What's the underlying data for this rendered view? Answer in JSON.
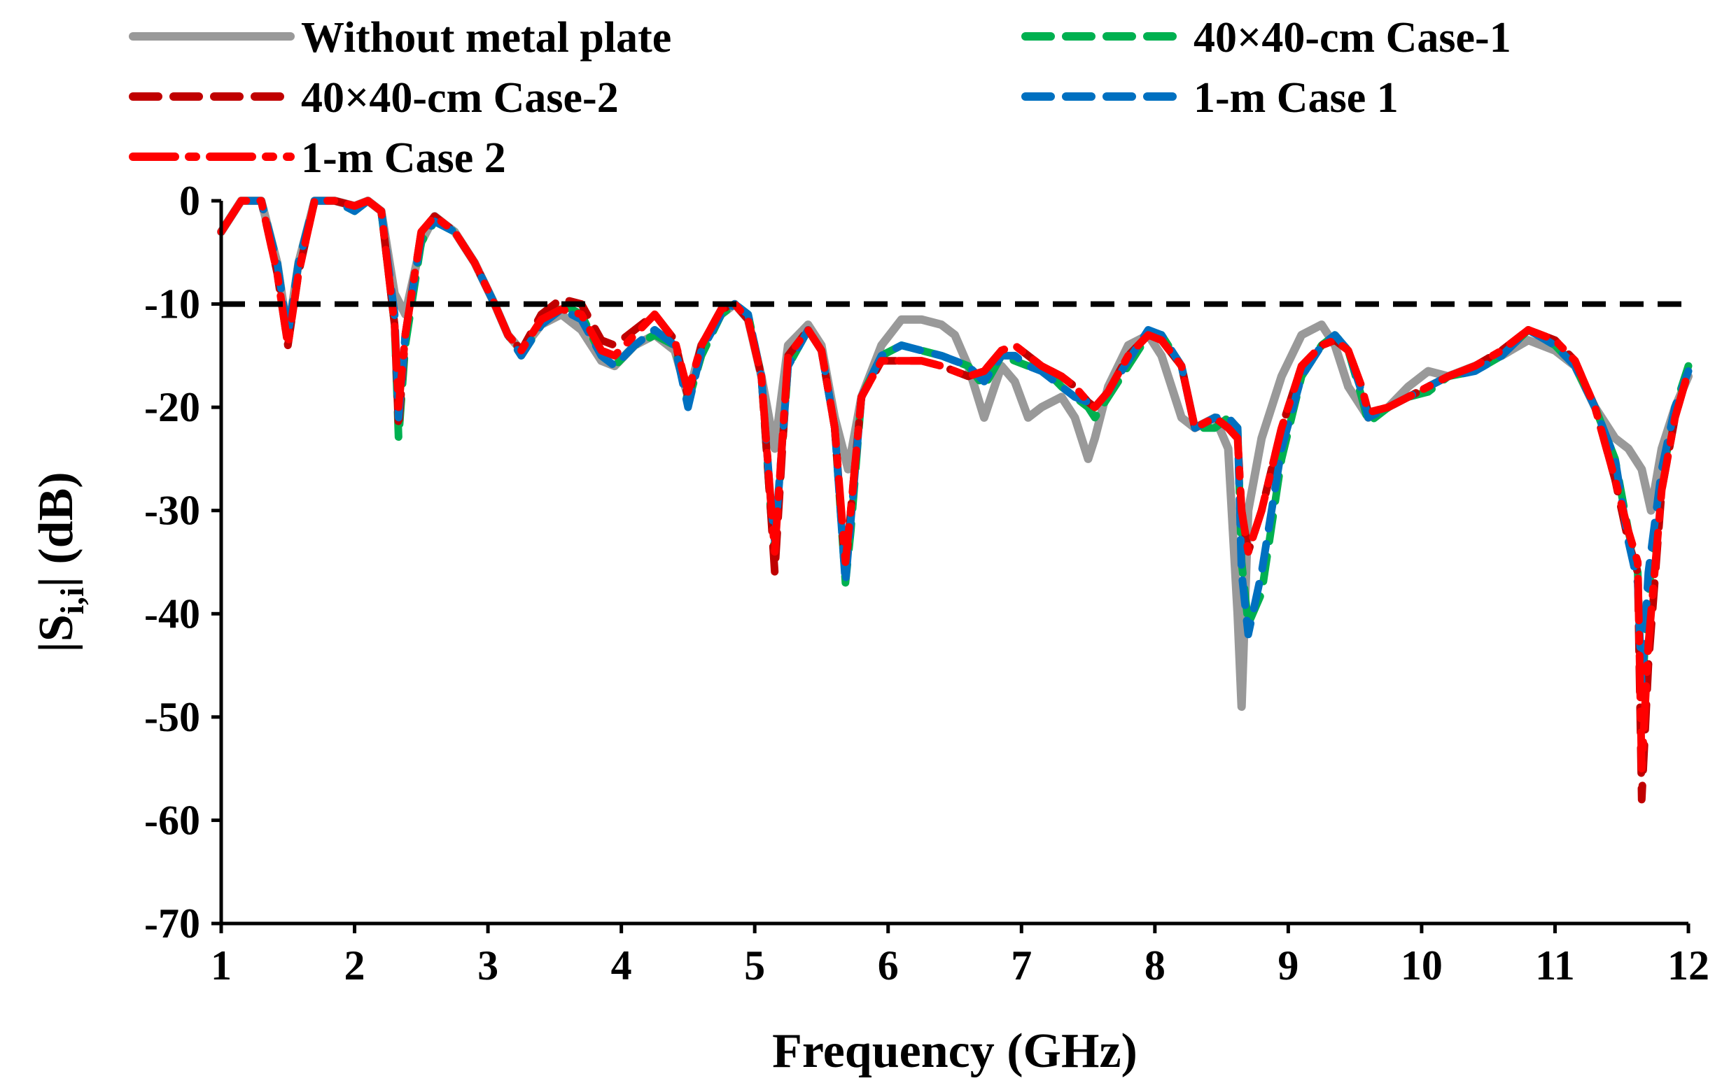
{
  "chart_data": {
    "type": "line",
    "title": "",
    "xlabel": "Frequency (GHz)",
    "ylabel_main": "|S",
    "ylabel_sub": "i,i",
    "ylabel_tail": "| (dB)",
    "xlim": [
      1,
      12
    ],
    "ylim": [
      -70,
      0
    ],
    "xticks": [
      1,
      2,
      3,
      4,
      5,
      6,
      7,
      8,
      9,
      10,
      11,
      12
    ],
    "yticks": [
      0,
      -10,
      -20,
      -30,
      -40,
      -50,
      -60,
      -70
    ],
    "threshold": {
      "y": -10,
      "color": "#000000",
      "style": "dashed"
    },
    "legend_position": "top",
    "series": [
      {
        "name": "Without metal plate",
        "color": "#999999",
        "style": "solid",
        "x": [
          1,
          1.15,
          1.3,
          1.42,
          1.5,
          1.58,
          1.7,
          1.85,
          2,
          2.1,
          2.2,
          2.3,
          2.38,
          2.5,
          2.6,
          2.75,
          2.9,
          3.05,
          3.15,
          3.25,
          3.4,
          3.55,
          3.7,
          3.85,
          3.95,
          4.1,
          4.25,
          4.4,
          4.5,
          4.6,
          4.75,
          4.85,
          4.95,
          5.05,
          5.15,
          5.25,
          5.4,
          5.5,
          5.6,
          5.7,
          5.8,
          5.95,
          6.1,
          6.25,
          6.4,
          6.5,
          6.6,
          6.72,
          6.85,
          6.95,
          7.05,
          7.15,
          7.3,
          7.4,
          7.5,
          7.55,
          7.65,
          7.8,
          7.95,
          8.05,
          8.2,
          8.3,
          8.45,
          8.55,
          8.62,
          8.65,
          8.7,
          8.8,
          8.95,
          9.1,
          9.25,
          9.35,
          9.45,
          9.6,
          9.75,
          9.9,
          10.05,
          10.2,
          10.4,
          10.6,
          10.8,
          11,
          11.15,
          11.3,
          11.45,
          11.55,
          11.65,
          11.72,
          11.8,
          11.9,
          12
        ],
        "y": [
          -3,
          0,
          0,
          -6,
          -13,
          -6,
          0,
          0,
          -0.5,
          0,
          -1,
          -9,
          -11,
          -4,
          -1.5,
          -3,
          -6,
          -10,
          -13,
          -14.5,
          -12,
          -11,
          -12.5,
          -15.5,
          -16,
          -14,
          -13,
          -14.5,
          -19,
          -14,
          -11,
          -10,
          -11.5,
          -17,
          -24,
          -14,
          -12,
          -14,
          -21,
          -26,
          -19,
          -14,
          -11.5,
          -11.5,
          -12,
          -13,
          -16,
          -21,
          -16,
          -17.5,
          -21,
          -20,
          -19,
          -21,
          -25,
          -23,
          -18,
          -14,
          -13,
          -15,
          -21,
          -22,
          -21,
          -24,
          -40,
          -49,
          -30,
          -23,
          -17,
          -13,
          -12,
          -14,
          -18,
          -21,
          -20,
          -18,
          -16.5,
          -17,
          -16,
          -15,
          -13.5,
          -14.5,
          -16,
          -20,
          -23,
          -24,
          -26,
          -30,
          -24,
          -20,
          -17
        ]
      },
      {
        "name": "40×40-cm Case-1",
        "color": "#00B050",
        "style": "dashed",
        "x": [
          1,
          1.15,
          1.3,
          1.42,
          1.5,
          1.58,
          1.7,
          1.85,
          2,
          2.1,
          2.2,
          2.3,
          2.33,
          2.38,
          2.5,
          2.6,
          2.75,
          2.9,
          3.05,
          3.15,
          3.25,
          3.4,
          3.55,
          3.7,
          3.85,
          3.95,
          4.1,
          4.25,
          4.4,
          4.5,
          4.6,
          4.75,
          4.85,
          4.95,
          5.05,
          5.12,
          5.15,
          5.25,
          5.4,
          5.5,
          5.6,
          5.68,
          5.72,
          5.8,
          5.95,
          6.1,
          6.25,
          6.4,
          6.5,
          6.6,
          6.72,
          6.85,
          6.95,
          7.05,
          7.15,
          7.3,
          7.4,
          7.5,
          7.55,
          7.65,
          7.8,
          7.95,
          8.05,
          8.2,
          8.3,
          8.45,
          8.55,
          8.62,
          8.65,
          8.7,
          8.8,
          8.95,
          9.1,
          9.25,
          9.35,
          9.45,
          9.55,
          9.6,
          9.75,
          9.9,
          10.05,
          10.2,
          10.4,
          10.6,
          10.8,
          11,
          11.15,
          11.3,
          11.45,
          11.55,
          11.62,
          11.65,
          11.7,
          11.8,
          11.9,
          12
        ],
        "y": [
          -3,
          0,
          0,
          -6,
          -13,
          -6,
          0,
          0,
          -1,
          0,
          -1,
          -12,
          -23,
          -14,
          -4,
          -2,
          -3,
          -6,
          -10,
          -13,
          -15,
          -12,
          -10,
          -11,
          -15,
          -16,
          -14,
          -13,
          -14,
          -19.5,
          -15,
          -11,
          -10,
          -11,
          -17,
          -30,
          -34,
          -16,
          -12.5,
          -14.5,
          -22,
          -37,
          -32,
          -19,
          -15,
          -14,
          -14.5,
          -15,
          -15.5,
          -16,
          -18,
          -15,
          -15.5,
          -16,
          -16,
          -18,
          -19,
          -20,
          -21,
          -19,
          -16,
          -13,
          -13,
          -16,
          -22,
          -22,
          -21,
          -22,
          -35,
          -41,
          -38,
          -25,
          -17,
          -14,
          -13,
          -14.5,
          -19,
          -21.5,
          -20,
          -19,
          -18.5,
          -17,
          -16.5,
          -15,
          -12.5,
          -14,
          -16,
          -20,
          -25,
          -32,
          -36,
          -48,
          -38,
          -27,
          -20,
          -16
        ]
      },
      {
        "name": "40×40-cm Case-2",
        "color": "#C00000",
        "style": "dashed",
        "x": [
          1,
          1.15,
          1.3,
          1.42,
          1.5,
          1.58,
          1.7,
          1.85,
          2,
          2.1,
          2.2,
          2.3,
          2.33,
          2.38,
          2.5,
          2.6,
          2.75,
          2.9,
          3.05,
          3.15,
          3.25,
          3.4,
          3.55,
          3.7,
          3.85,
          3.95,
          4.1,
          4.25,
          4.4,
          4.5,
          4.6,
          4.75,
          4.85,
          4.95,
          5.05,
          5.12,
          5.15,
          5.25,
          5.4,
          5.5,
          5.6,
          5.68,
          5.72,
          5.8,
          5.95,
          6.1,
          6.25,
          6.4,
          6.5,
          6.6,
          6.72,
          6.85,
          6.95,
          7.05,
          7.15,
          7.3,
          7.4,
          7.5,
          7.55,
          7.65,
          7.8,
          7.95,
          8.05,
          8.2,
          8.3,
          8.45,
          8.55,
          8.62,
          8.65,
          8.7,
          8.8,
          8.95,
          9.1,
          9.25,
          9.35,
          9.45,
          9.55,
          9.6,
          9.75,
          9.9,
          10.05,
          10.2,
          10.4,
          10.6,
          10.8,
          11,
          11.15,
          11.3,
          11.45,
          11.55,
          11.62,
          11.65,
          11.7,
          11.8,
          11.9,
          12
        ],
        "y": [
          -3,
          0,
          0,
          -7,
          -14,
          -7,
          0,
          0,
          -0.5,
          0,
          -1,
          -12,
          -22,
          -13,
          -3,
          -1.5,
          -3,
          -6,
          -10,
          -13,
          -14.5,
          -11,
          -9.5,
          -10,
          -13.5,
          -14,
          -12.5,
          -11,
          -13.5,
          -19,
          -14,
          -10.5,
          -10,
          -11.5,
          -17,
          -30,
          -36,
          -15,
          -12.5,
          -14.5,
          -22,
          -36,
          -30,
          -19,
          -15.5,
          -15.5,
          -15.5,
          -16,
          -16.5,
          -17,
          -16.5,
          -14.5,
          -14,
          -15,
          -16,
          -17,
          -18,
          -19.5,
          -20,
          -18.5,
          -15,
          -13,
          -13.5,
          -16,
          -22,
          -21,
          -22,
          -23,
          -30,
          -34,
          -30,
          -22,
          -16,
          -14,
          -13.5,
          -14.5,
          -18,
          -20.5,
          -20,
          -19,
          -18,
          -17,
          -16,
          -14.5,
          -12.5,
          -13.5,
          -15.5,
          -20,
          -27,
          -33,
          -36,
          -58,
          -45,
          -28,
          -21,
          -16.5
        ]
      },
      {
        "name": "1-m Case 1",
        "color": "#0070C0",
        "style": "dashed",
        "x": [
          1,
          1.15,
          1.3,
          1.42,
          1.5,
          1.58,
          1.7,
          1.85,
          2,
          2.1,
          2.2,
          2.3,
          2.33,
          2.38,
          2.5,
          2.6,
          2.75,
          2.9,
          3.05,
          3.15,
          3.25,
          3.4,
          3.55,
          3.7,
          3.85,
          3.95,
          4.1,
          4.25,
          4.4,
          4.5,
          4.6,
          4.75,
          4.85,
          4.95,
          5.05,
          5.12,
          5.15,
          5.25,
          5.4,
          5.5,
          5.6,
          5.68,
          5.72,
          5.8,
          5.95,
          6.1,
          6.25,
          6.4,
          6.5,
          6.6,
          6.72,
          6.85,
          6.95,
          7.05,
          7.15,
          7.3,
          7.4,
          7.5,
          7.55,
          7.65,
          7.8,
          7.95,
          8.05,
          8.2,
          8.3,
          8.45,
          8.55,
          8.62,
          8.65,
          8.7,
          8.8,
          8.95,
          9.1,
          9.25,
          9.35,
          9.45,
          9.55,
          9.6,
          9.75,
          9.9,
          10.05,
          10.2,
          10.4,
          10.6,
          10.8,
          11,
          11.15,
          11.3,
          11.45,
          11.55,
          11.62,
          11.65,
          11.7,
          11.8,
          11.9,
          12
        ],
        "y": [
          -3,
          0,
          0,
          -6,
          -13,
          -6,
          0,
          0,
          -1,
          0,
          -1,
          -11,
          -21,
          -13,
          -3.5,
          -2,
          -3,
          -6,
          -10,
          -13,
          -15,
          -12,
          -10.5,
          -11.5,
          -15,
          -16,
          -14,
          -12.5,
          -14,
          -20,
          -14.5,
          -11,
          -10,
          -11,
          -17,
          -29,
          -33,
          -16,
          -12.5,
          -14.5,
          -22,
          -37,
          -31,
          -19,
          -15,
          -14,
          -14.5,
          -15,
          -15.5,
          -16,
          -17.5,
          -15,
          -15,
          -16,
          -16.5,
          -18,
          -19,
          -19.5,
          -20,
          -18.5,
          -15.5,
          -12.5,
          -13,
          -16,
          -22,
          -21,
          -21,
          -22,
          -36,
          -42,
          -36,
          -24,
          -17,
          -14,
          -13,
          -14.5,
          -18.5,
          -21,
          -20,
          -19,
          -18,
          -17,
          -16.5,
          -15,
          -12.5,
          -14,
          -16,
          -20,
          -25,
          -33,
          -37,
          -47,
          -36,
          -26,
          -20,
          -16.5
        ]
      },
      {
        "name": "1-m Case 2",
        "color": "#FF0000",
        "style": "dashdot",
        "x": [
          1,
          1.15,
          1.3,
          1.42,
          1.5,
          1.58,
          1.7,
          1.85,
          2,
          2.1,
          2.2,
          2.3,
          2.33,
          2.38,
          2.5,
          2.6,
          2.75,
          2.9,
          3.05,
          3.15,
          3.25,
          3.4,
          3.55,
          3.7,
          3.85,
          3.95,
          4.1,
          4.25,
          4.4,
          4.5,
          4.6,
          4.75,
          4.85,
          4.95,
          5.05,
          5.12,
          5.15,
          5.25,
          5.4,
          5.5,
          5.6,
          5.68,
          5.72,
          5.8,
          5.95,
          6.1,
          6.25,
          6.4,
          6.5,
          6.6,
          6.72,
          6.85,
          6.95,
          7.05,
          7.15,
          7.3,
          7.4,
          7.5,
          7.55,
          7.65,
          7.8,
          7.95,
          8.05,
          8.2,
          8.3,
          8.45,
          8.55,
          8.62,
          8.65,
          8.7,
          8.8,
          8.95,
          9.1,
          9.25,
          9.35,
          9.45,
          9.55,
          9.6,
          9.75,
          9.9,
          10.05,
          10.2,
          10.4,
          10.6,
          10.8,
          11,
          11.15,
          11.3,
          11.45,
          11.55,
          11.62,
          11.65,
          11.7,
          11.8,
          11.9,
          12
        ],
        "y": [
          -3,
          0,
          0,
          -7,
          -14,
          -7,
          0,
          0,
          -0.5,
          0,
          -1,
          -12,
          -20,
          -13,
          -3,
          -1.5,
          -3,
          -6,
          -10,
          -13,
          -14.5,
          -11.5,
          -10.5,
          -11,
          -14.5,
          -15,
          -13,
          -11,
          -13.5,
          -18.5,
          -14,
          -10.5,
          -10,
          -11.5,
          -17,
          -29,
          -34,
          -15,
          -12.5,
          -14.5,
          -22,
          -35,
          -30,
          -19,
          -15.5,
          -15.5,
          -15.5,
          -16,
          -16.5,
          -17,
          -16.5,
          -14.5,
          -14,
          -15,
          -16,
          -17,
          -18,
          -19.5,
          -20,
          -18.5,
          -15,
          -13,
          -13.5,
          -16,
          -22,
          -21,
          -22,
          -23,
          -30,
          -34,
          -30,
          -22,
          -16,
          -14,
          -13.5,
          -14.5,
          -18,
          -20.5,
          -20,
          -19,
          -18,
          -17,
          -16,
          -14.5,
          -12.5,
          -13.5,
          -15.5,
          -20,
          -27,
          -32,
          -35,
          -55,
          -43,
          -28,
          -21,
          -16.5
        ]
      }
    ]
  }
}
